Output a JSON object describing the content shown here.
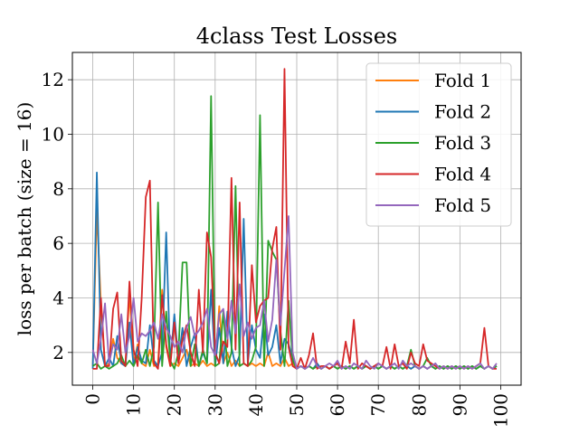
{
  "chart_data": {
    "type": "line",
    "title": "4class Test Losses",
    "xlabel": "",
    "ylabel": "loss per batch (size = 16)",
    "xlim": [
      -5,
      105
    ],
    "ylim": [
      0.8,
      13.0
    ],
    "xticks": [
      0,
      10,
      20,
      30,
      40,
      50,
      60,
      70,
      80,
      90,
      100
    ],
    "xtick_labels": [
      "0",
      "10",
      "20",
      "30",
      "40",
      "50",
      "60",
      "70",
      "80",
      "90",
      "100"
    ],
    "yticks": [
      2,
      4,
      6,
      8,
      10,
      12
    ],
    "ytick_labels": [
      "2",
      "4",
      "6",
      "8",
      "10",
      "12"
    ],
    "grid": true,
    "legend_position": "top-right",
    "series": [
      {
        "name": "Fold 1",
        "color": "#ff7f0e",
        "x": [
          0,
          1,
          2,
          3,
          4,
          5,
          6,
          7,
          8,
          9,
          10,
          11,
          12,
          13,
          14,
          15,
          16,
          17,
          18,
          19,
          20,
          21,
          22,
          23,
          24,
          25,
          26,
          27,
          28,
          29,
          30,
          31,
          32,
          33,
          34,
          35,
          36,
          37,
          38,
          39,
          40,
          41,
          42,
          43,
          44,
          45,
          46,
          47,
          48,
          49,
          50,
          51,
          52,
          53,
          54,
          55,
          56,
          57,
          58,
          59,
          60,
          61,
          62,
          63,
          64,
          65,
          66,
          67,
          68,
          69,
          70,
          71,
          72,
          73,
          74,
          75,
          76,
          77,
          78,
          79,
          80,
          81,
          82,
          83,
          84,
          85,
          86,
          87,
          88,
          89,
          90,
          91,
          92,
          93,
          94,
          95,
          96,
          97,
          98,
          99
        ],
        "values": [
          1.5,
          7.2,
          3.8,
          1.5,
          1.6,
          2.5,
          1.8,
          1.6,
          1.5,
          4.2,
          1.6,
          2.3,
          1.6,
          1.5,
          2.1,
          1.5,
          1.6,
          4.3,
          2.2,
          1.5,
          1.6,
          1.5,
          1.8,
          2.1,
          1.5,
          1.6,
          1.5,
          1.7,
          1.5,
          1.6,
          1.5,
          3.7,
          1.6,
          2.0,
          1.5,
          1.7,
          1.5,
          1.6,
          1.5,
          1.6,
          1.5,
          1.6,
          1.5,
          2.0,
          1.5,
          1.6,
          1.5,
          1.8,
          1.5,
          1.6,
          1.4,
          1.5,
          1.4,
          1.5,
          1.4,
          1.5,
          1.4,
          1.5,
          1.4,
          1.5,
          1.4,
          1.5,
          1.4,
          1.5,
          1.4,
          1.5,
          1.4,
          1.5,
          1.4,
          1.5,
          1.4,
          1.5,
          1.4,
          1.5,
          1.4,
          1.5,
          1.4,
          1.5,
          1.4,
          1.5,
          1.4,
          1.5,
          1.4,
          1.5,
          1.4,
          1.5,
          1.4,
          1.5,
          1.4,
          1.5,
          1.4,
          1.5,
          1.4,
          1.5,
          1.4,
          1.5,
          1.4,
          1.5,
          1.4,
          1.5
        ]
      },
      {
        "name": "Fold 2",
        "color": "#1f77b4",
        "x": [
          0,
          1,
          2,
          3,
          4,
          5,
          6,
          7,
          8,
          9,
          10,
          11,
          12,
          13,
          14,
          15,
          16,
          17,
          18,
          19,
          20,
          21,
          22,
          23,
          24,
          25,
          26,
          27,
          28,
          29,
          30,
          31,
          32,
          33,
          34,
          35,
          36,
          37,
          38,
          39,
          40,
          41,
          42,
          43,
          44,
          45,
          46,
          47,
          48,
          49,
          50,
          51,
          52,
          53,
          54,
          55,
          56,
          57,
          58,
          59,
          60,
          61,
          62,
          63,
          64,
          65,
          66,
          67,
          68,
          69,
          70,
          71,
          72,
          73,
          74,
          75,
          76,
          77,
          78,
          79,
          80,
          81,
          82,
          83,
          84,
          85,
          86,
          87,
          88,
          89,
          90,
          91,
          92,
          93,
          94,
          95,
          96,
          97,
          98,
          99
        ],
        "values": [
          1.4,
          8.6,
          2.1,
          1.5,
          1.8,
          1.5,
          2.6,
          1.6,
          1.5,
          3.1,
          1.5,
          2.2,
          1.7,
          1.6,
          3.0,
          1.7,
          1.5,
          2.0,
          6.4,
          1.6,
          3.4,
          1.7,
          2.9,
          1.5,
          2.2,
          2.7,
          1.5,
          2.0,
          1.6,
          4.3,
          1.5,
          2.9,
          1.6,
          3.5,
          2.2,
          1.5,
          1.9,
          6.9,
          1.6,
          3.0,
          2.1,
          1.8,
          3.4,
          1.9,
          2.2,
          3.0,
          1.6,
          2.5,
          2.3,
          1.8,
          1.4,
          1.5,
          1.4,
          1.5,
          1.4,
          1.6,
          1.4,
          1.5,
          1.4,
          1.5,
          1.4,
          1.5,
          1.4,
          1.5,
          1.4,
          1.5,
          1.4,
          1.5,
          1.4,
          1.5,
          1.4,
          1.5,
          1.4,
          1.5,
          1.4,
          1.5,
          1.4,
          1.5,
          1.4,
          1.5,
          1.4,
          1.5,
          1.4,
          1.5,
          1.4,
          1.5,
          1.4,
          1.5,
          1.4,
          1.5,
          1.4,
          1.5,
          1.4,
          1.5,
          1.4,
          1.5,
          1.4,
          1.5,
          1.4,
          1.5
        ]
      },
      {
        "name": "Fold 3",
        "color": "#2ca02c",
        "x": [
          0,
          1,
          2,
          3,
          4,
          5,
          6,
          7,
          8,
          9,
          10,
          11,
          12,
          13,
          14,
          15,
          16,
          17,
          18,
          19,
          20,
          21,
          22,
          23,
          24,
          25,
          26,
          27,
          28,
          29,
          30,
          31,
          32,
          33,
          34,
          35,
          36,
          37,
          38,
          39,
          40,
          41,
          42,
          43,
          44,
          45,
          46,
          47,
          48,
          49,
          50,
          51,
          52,
          53,
          54,
          55,
          56,
          57,
          58,
          59,
          60,
          61,
          62,
          63,
          64,
          65,
          66,
          67,
          68,
          69,
          70,
          71,
          72,
          73,
          74,
          75,
          76,
          77,
          78,
          79,
          80,
          81,
          82,
          83,
          84,
          85,
          86,
          87,
          88,
          89,
          90,
          91,
          92,
          93,
          94,
          95,
          96,
          97,
          98,
          99
        ],
        "values": [
          1.5,
          1.6,
          1.4,
          1.5,
          1.4,
          1.5,
          1.6,
          1.9,
          1.5,
          1.7,
          1.5,
          1.9,
          1.6,
          2.1,
          1.5,
          2.2,
          7.5,
          1.5,
          3.5,
          1.7,
          1.4,
          2.0,
          5.3,
          5.3,
          1.5,
          2.3,
          1.5,
          2.1,
          1.6,
          11.4,
          1.5,
          1.6,
          3.5,
          1.5,
          2.0,
          8.1,
          1.5,
          1.6,
          1.5,
          1.7,
          2.2,
          10.7,
          1.5,
          6.1,
          5.7,
          5.4,
          2.8,
          1.5,
          3.9,
          1.7,
          1.4,
          1.5,
          1.4,
          1.5,
          1.4,
          1.5,
          1.4,
          1.5,
          1.4,
          1.5,
          1.4,
          1.5,
          1.4,
          1.5,
          1.4,
          1.5,
          1.4,
          1.5,
          1.4,
          1.5,
          1.4,
          1.5,
          1.4,
          1.5,
          1.4,
          1.5,
          1.4,
          1.5,
          2.1,
          1.5,
          1.4,
          1.5,
          1.8,
          1.5,
          1.4,
          1.5,
          1.4,
          1.5,
          1.4,
          1.5,
          1.4,
          1.5,
          1.4,
          1.5,
          1.4,
          1.5,
          1.4,
          1.5,
          1.4,
          1.5
        ]
      },
      {
        "name": "Fold 4",
        "color": "#d62728",
        "x": [
          0,
          1,
          2,
          3,
          4,
          5,
          6,
          7,
          8,
          9,
          10,
          11,
          12,
          13,
          14,
          15,
          16,
          17,
          18,
          19,
          20,
          21,
          22,
          23,
          24,
          25,
          26,
          27,
          28,
          29,
          30,
          31,
          32,
          33,
          34,
          35,
          36,
          37,
          38,
          39,
          40,
          41,
          42,
          43,
          44,
          45,
          46,
          47,
          48,
          49,
          50,
          51,
          52,
          53,
          54,
          55,
          56,
          57,
          58,
          59,
          60,
          61,
          62,
          63,
          64,
          65,
          66,
          67,
          68,
          69,
          70,
          71,
          72,
          73,
          74,
          75,
          76,
          77,
          78,
          79,
          80,
          81,
          82,
          83,
          84,
          85,
          86,
          87,
          88,
          89,
          90,
          91,
          92,
          93,
          94,
          95,
          96,
          97,
          98,
          99
        ],
        "values": [
          1.4,
          1.4,
          4.0,
          1.5,
          1.5,
          3.6,
          4.2,
          1.7,
          1.5,
          4.6,
          2.1,
          1.5,
          4.0,
          7.7,
          8.3,
          1.6,
          1.4,
          4.1,
          2.3,
          1.5,
          3.1,
          1.6,
          2.5,
          3.0,
          2.0,
          1.5,
          4.3,
          2.0,
          6.4,
          5.5,
          2.0,
          1.6,
          2.4,
          2.2,
          8.4,
          2.1,
          7.5,
          1.6,
          1.5,
          5.2,
          3.1,
          3.7,
          3.9,
          4.0,
          5.8,
          6.6,
          2.1,
          12.4,
          2.2,
          1.5,
          1.4,
          1.8,
          1.4,
          1.9,
          2.7,
          1.4,
          1.5,
          1.5,
          1.4,
          1.5,
          1.6,
          1.4,
          2.4,
          1.6,
          3.2,
          1.4,
          1.6,
          1.5,
          1.4,
          1.5,
          1.6,
          1.5,
          2.2,
          1.4,
          2.3,
          1.5,
          1.6,
          1.4,
          2.0,
          1.6,
          1.5,
          2.3,
          1.7,
          1.6,
          1.5,
          1.4,
          1.5,
          1.4,
          1.5,
          1.4,
          1.5,
          1.4,
          1.5,
          1.4,
          1.5,
          1.6,
          2.9,
          1.5,
          1.4,
          1.4
        ]
      },
      {
        "name": "Fold 5",
        "color": "#9467bd",
        "x": [
          0,
          1,
          2,
          3,
          4,
          5,
          6,
          7,
          8,
          9,
          10,
          11,
          12,
          13,
          14,
          15,
          16,
          17,
          18,
          19,
          20,
          21,
          22,
          23,
          24,
          25,
          26,
          27,
          28,
          29,
          30,
          31,
          32,
          33,
          34,
          35,
          36,
          37,
          38,
          39,
          40,
          41,
          42,
          43,
          44,
          45,
          46,
          47,
          48,
          49,
          50,
          51,
          52,
          53,
          54,
          55,
          56,
          57,
          58,
          59,
          60,
          61,
          62,
          63,
          64,
          65,
          66,
          67,
          68,
          69,
          70,
          71,
          72,
          73,
          74,
          75,
          76,
          77,
          78,
          79,
          80,
          81,
          82,
          83,
          84,
          85,
          86,
          87,
          88,
          89,
          90,
          91,
          92,
          93,
          94,
          95,
          96,
          97,
          98,
          99
        ],
        "values": [
          2.1,
          1.6,
          2.5,
          3.8,
          1.6,
          2.3,
          2.1,
          3.4,
          2.0,
          2.6,
          4.0,
          2.4,
          2.7,
          2.6,
          2.8,
          3.1,
          2.5,
          3.4,
          2.9,
          2.6,
          2.2,
          2.4,
          2.0,
          2.9,
          3.3,
          2.6,
          2.8,
          3.1,
          3.6,
          2.2,
          1.9,
          3.4,
          3.6,
          2.5,
          3.9,
          2.7,
          4.5,
          2.6,
          3.1,
          2.5,
          2.9,
          3.0,
          3.9,
          2.4,
          3.2,
          5.4,
          3.0,
          5.0,
          7.0,
          2.0,
          1.4,
          1.5,
          1.4,
          1.5,
          1.8,
          1.5,
          1.4,
          1.5,
          1.6,
          1.5,
          1.7,
          1.4,
          1.5,
          1.4,
          1.6,
          1.5,
          1.4,
          1.7,
          1.5,
          1.4,
          1.6,
          1.5,
          1.4,
          1.5,
          1.6,
          1.4,
          1.7,
          1.5,
          1.6,
          1.5,
          1.4,
          1.5,
          1.4,
          1.5,
          1.6,
          1.4,
          1.5,
          1.4,
          1.5,
          1.4,
          1.5,
          1.4,
          1.5,
          1.4,
          1.5,
          1.6,
          1.4,
          1.5,
          1.4,
          1.6
        ]
      }
    ]
  }
}
